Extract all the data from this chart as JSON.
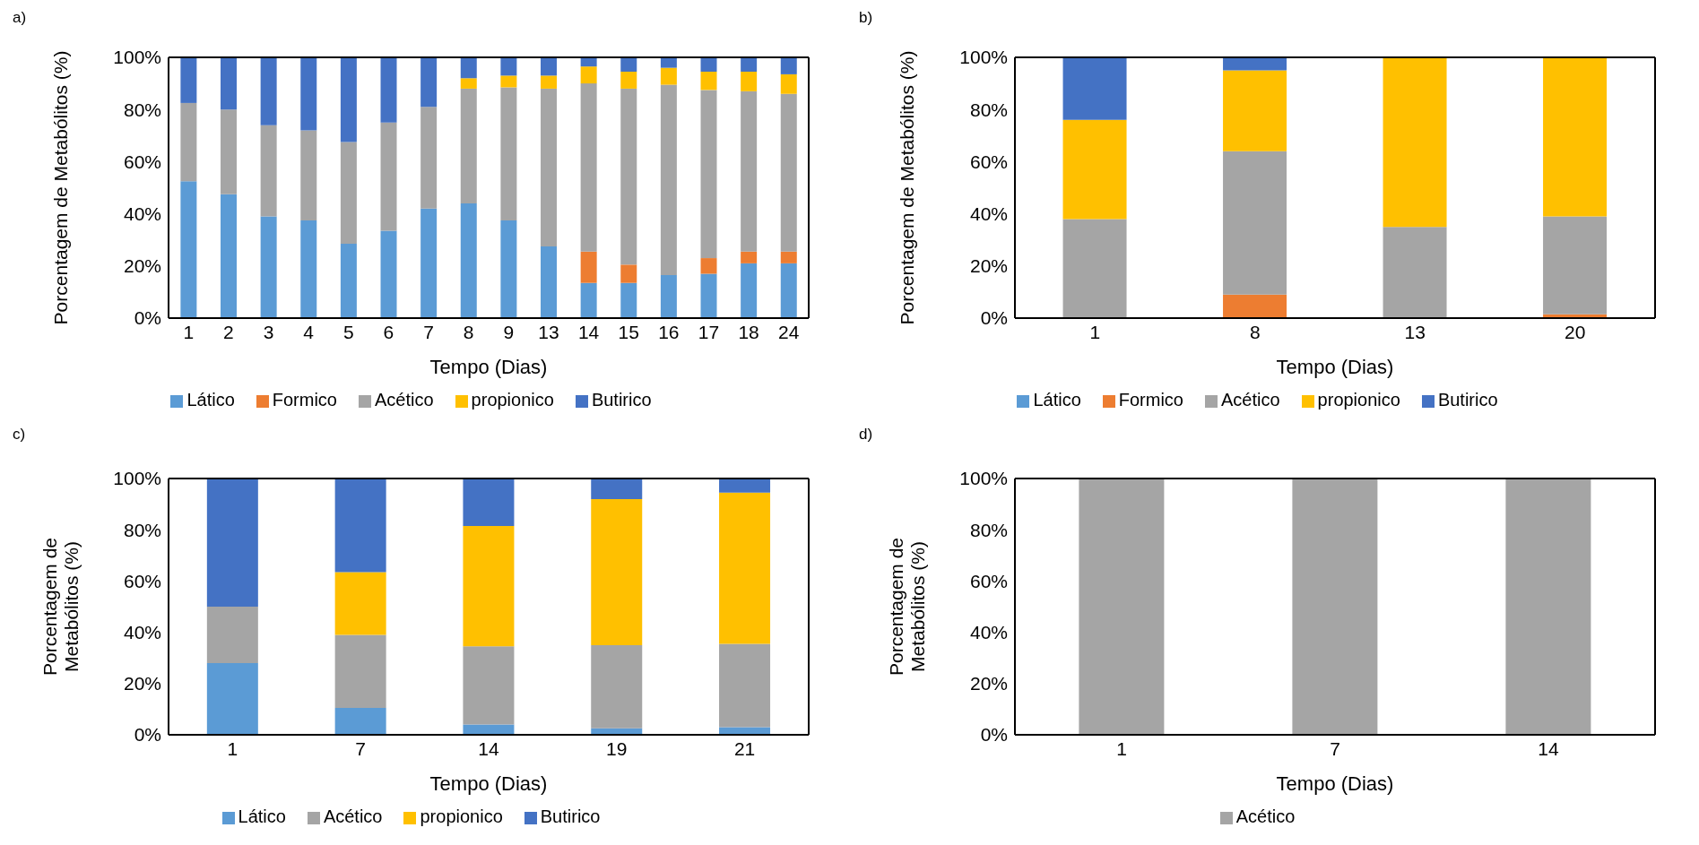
{
  "chart_data": [
    {
      "type": "bar",
      "title": "a)",
      "xlabel": "Tempo (Dias)",
      "ylabel": "Porcentagem de Metabólitos (%)",
      "stacked": true,
      "legend": "bottom",
      "categories": [
        "1",
        "2",
        "3",
        "4",
        "5",
        "6",
        "7",
        "8",
        "9",
        "13",
        "14",
        "15",
        "16",
        "17",
        "18",
        "24"
      ],
      "ylim": [
        0,
        100
      ],
      "yticks": [
        {
          "value": 0,
          "label": "0%"
        },
        {
          "value": 20,
          "label": "20%"
        },
        {
          "value": 40,
          "label": "40%"
        },
        {
          "value": 60,
          "label": "60%"
        },
        {
          "value": 80,
          "label": "80%"
        },
        {
          "value": 100,
          "label": "100%"
        }
      ],
      "series": [
        {
          "name": "Lático",
          "color": "#5b9bd5",
          "values": [
            52.5,
            47.5,
            39,
            37.5,
            28.5,
            33.5,
            42,
            44,
            37.5,
            27.5,
            13.5,
            13.5,
            16.5,
            17,
            21,
            21
          ]
        },
        {
          "name": "Formico",
          "color": "#ed7d31",
          "values": [
            0,
            0,
            0,
            0,
            0,
            0,
            0,
            0,
            0,
            0,
            12,
            7,
            0,
            6,
            4.5,
            4.5
          ]
        },
        {
          "name": "Acético",
          "color": "#a5a5a5",
          "values": [
            30,
            32.5,
            35,
            34.5,
            39,
            41.5,
            39,
            44,
            51,
            60.5,
            64.5,
            67.5,
            73,
            64.5,
            61.5,
            60.5
          ]
        },
        {
          "name": "propionico",
          "color": "#ffc000",
          "values": [
            0,
            0,
            0,
            0,
            0,
            0,
            0,
            4,
            4.5,
            5,
            6.5,
            6.5,
            6.5,
            7,
            7.5,
            7.5
          ]
        },
        {
          "name": "Butirico",
          "color": "#4472c4",
          "values": [
            17.5,
            20,
            26,
            28,
            32.5,
            25,
            19,
            8,
            7,
            7,
            3.5,
            5.5,
            4,
            5.5,
            5.5,
            6.5
          ]
        }
      ]
    },
    {
      "type": "bar",
      "title": "b)",
      "xlabel": "Tempo (Dias)",
      "ylabel": "Porcentagem de Metabólitos (%)",
      "stacked": true,
      "legend": "bottom",
      "categories": [
        "1",
        "8",
        "13",
        "20"
      ],
      "ylim": [
        0,
        100
      ],
      "yticks": [
        {
          "value": 0,
          "label": "0%"
        },
        {
          "value": 20,
          "label": "20%"
        },
        {
          "value": 40,
          "label": "40%"
        },
        {
          "value": 60,
          "label": "60%"
        },
        {
          "value": 80,
          "label": "80%"
        },
        {
          "value": 100,
          "label": "100%"
        }
      ],
      "series": [
        {
          "name": "Lático",
          "color": "#5b9bd5",
          "values": [
            0,
            0,
            0,
            0
          ]
        },
        {
          "name": "Formico",
          "color": "#ed7d31",
          "values": [
            0,
            9,
            0,
            1.5
          ]
        },
        {
          "name": "Acético",
          "color": "#a5a5a5",
          "values": [
            38,
            55,
            35,
            37.5
          ]
        },
        {
          "name": "propionico",
          "color": "#ffc000",
          "values": [
            38,
            31,
            65,
            61
          ]
        },
        {
          "name": "Butirico",
          "color": "#4472c4",
          "values": [
            24,
            5,
            0,
            0
          ]
        }
      ]
    },
    {
      "type": "bar",
      "title": "c)",
      "xlabel": "Tempo (Dias)",
      "ylabel": "Porcentagem de Metabólitos (%)",
      "stacked": true,
      "legend": "bottom",
      "categories": [
        "1",
        "7",
        "14",
        "19",
        "21"
      ],
      "ylim": [
        0,
        100
      ],
      "yticks": [
        {
          "value": 0,
          "label": "0%"
        },
        {
          "value": 20,
          "label": "20%"
        },
        {
          "value": 40,
          "label": "40%"
        },
        {
          "value": 60,
          "label": "60%"
        },
        {
          "value": 80,
          "label": "80%"
        },
        {
          "value": 100,
          "label": "100%"
        }
      ],
      "series": [
        {
          "name": "Lático",
          "color": "#5b9bd5",
          "values": [
            28,
            10.5,
            4,
            2.5,
            3
          ]
        },
        {
          "name": "Acético",
          "color": "#a5a5a5",
          "values": [
            22,
            28.5,
            30.5,
            32.5,
            32.5
          ]
        },
        {
          "name": "propionico",
          "color": "#ffc000",
          "values": [
            0,
            24.5,
            47,
            57,
            59
          ]
        },
        {
          "name": "Butirico",
          "color": "#4472c4",
          "values": [
            50,
            36.5,
            18.5,
            8,
            5.5
          ]
        }
      ]
    },
    {
      "type": "bar",
      "title": "d)",
      "xlabel": "Tempo (Dias)",
      "ylabel": "Porcentagem de Metabólitos (%)",
      "stacked": true,
      "legend": "bottom",
      "categories": [
        "1",
        "7",
        "14"
      ],
      "ylim": [
        0,
        100
      ],
      "yticks": [
        {
          "value": 0,
          "label": "0%"
        },
        {
          "value": 20,
          "label": "20%"
        },
        {
          "value": 40,
          "label": "40%"
        },
        {
          "value": 60,
          "label": "60%"
        },
        {
          "value": 80,
          "label": "80%"
        },
        {
          "value": 100,
          "label": "100%"
        }
      ],
      "series": [
        {
          "name": "Acético",
          "color": "#a5a5a5",
          "values": [
            100,
            100,
            100
          ]
        }
      ]
    }
  ]
}
